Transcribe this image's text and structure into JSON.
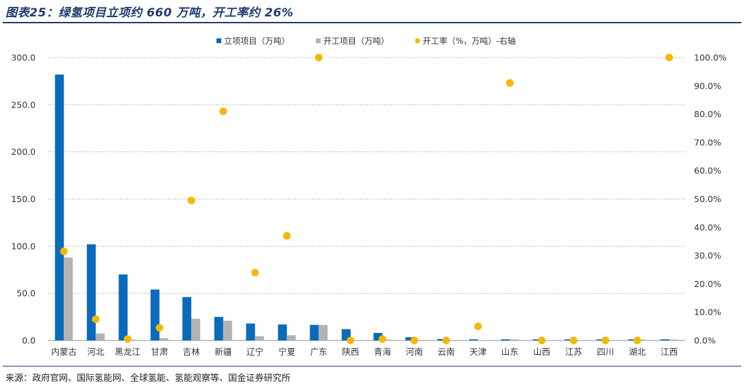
{
  "figure": {
    "title": "图表25：绿氢项目立项约 660 万吨，开工率约 26%",
    "source": "来源：政府官网、国际氢能网、全球氢能、氢能观察等、国金证券研究所"
  },
  "colors": {
    "primary": "#0a6bbd",
    "secondary": "#b3b3b3",
    "rate": "#f5b800",
    "title": "#1f3a6e"
  },
  "chart_data": {
    "type": "bar",
    "title": "",
    "categories": [
      "内蒙古",
      "河北",
      "黑龙江",
      "甘肃",
      "吉林",
      "新疆",
      "辽宁",
      "宁夏",
      "广东",
      "陕西",
      "青海",
      "河南",
      "云南",
      "天津",
      "山东",
      "山西",
      "江苏",
      "四川",
      "湖北",
      "江西"
    ],
    "series": [
      {
        "name": "立项项目（万吨）",
        "type": "bar",
        "axis": "left",
        "values": [
          282,
          102,
          70,
          54,
          46,
          25,
          18,
          17,
          16.5,
          12,
          8,
          3.5,
          1.5,
          1.2,
          1.2,
          1.2,
          1.2,
          1.2,
          1.2,
          1.2
        ]
      },
      {
        "name": "开工项目（万吨）",
        "type": "bar",
        "axis": "left",
        "values": [
          88,
          7.5,
          1,
          2.5,
          23,
          21,
          4.5,
          5.5,
          16.5,
          0,
          1,
          0,
          0,
          0.5,
          1.2,
          0,
          0,
          0,
          1,
          1
        ]
      },
      {
        "name": "开工率（%，万吨）-右轴",
        "type": "scatter",
        "axis": "right",
        "values": [
          31.5,
          7.5,
          0.5,
          4.5,
          49.5,
          81,
          24,
          37,
          100,
          0,
          0.5,
          0,
          0,
          5,
          91,
          0,
          0,
          0,
          0,
          100
        ]
      }
    ],
    "y_left": {
      "range": [
        0,
        300
      ],
      "ticks": [
        "0.0",
        "50.0",
        "100.0",
        "150.0",
        "200.0",
        "250.0",
        "300.0"
      ]
    },
    "y_right": {
      "range": [
        0,
        100
      ],
      "ticks": [
        "0.0%",
        "10.0%",
        "20.0%",
        "30.0%",
        "40.0%",
        "50.0%",
        "60.0%",
        "70.0%",
        "80.0%",
        "90.0%",
        "100.0%"
      ]
    },
    "grid": true,
    "legend_position": "top-center"
  }
}
